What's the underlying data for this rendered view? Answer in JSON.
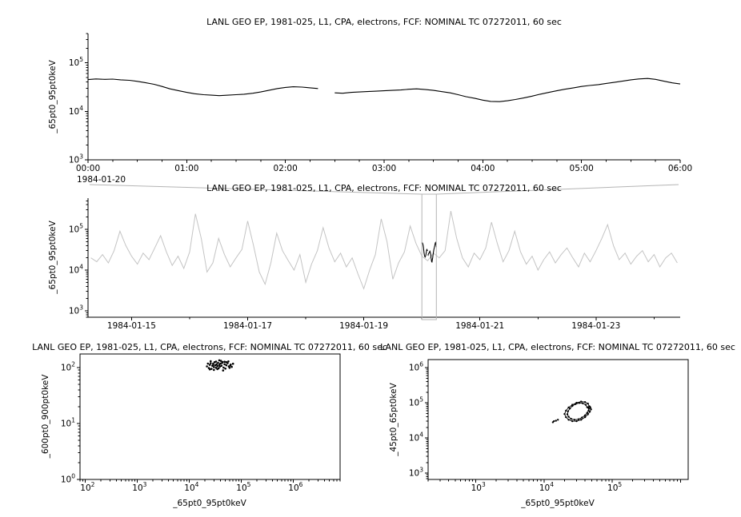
{
  "app": {
    "background_color": "#ffffff",
    "axis_color": "#000000",
    "overview_line_color": "#c4c4c4",
    "selection_box_color": "#b4b4b4"
  },
  "chart_data": [
    {
      "id": "top-timeseries",
      "type": "line",
      "title": "LANL GEO EP, 1981-025, L1, CPA, electrons, FCF: NOMINAL TC 07272011, 60 sec",
      "ylabel": "_65pt0_95pt0keV",
      "x_date_label": "1984-01-20",
      "x_tick_labels": [
        "00:00",
        "01:00",
        "02:00",
        "03:00",
        "04:00",
        "05:00",
        "06:00"
      ],
      "x_tick_hours": [
        0,
        1,
        2,
        3,
        4,
        5,
        6
      ],
      "xlim": [
        0,
        6
      ],
      "ylim": [
        1000,
        400000
      ],
      "y_tick_exponents": [
        3,
        4,
        5
      ],
      "line_color": "#000000",
      "points": [
        [
          0.0,
          45000
        ],
        [
          0.08,
          46500
        ],
        [
          0.17,
          45500
        ],
        [
          0.25,
          46000
        ],
        [
          0.33,
          44500
        ],
        [
          0.42,
          43500
        ],
        [
          0.5,
          41500
        ],
        [
          0.58,
          39000
        ],
        [
          0.67,
          36000
        ],
        [
          0.75,
          32500
        ],
        [
          0.83,
          29000
        ],
        [
          0.92,
          26500
        ],
        [
          1.0,
          24500
        ],
        [
          1.08,
          23000
        ],
        [
          1.17,
          22000
        ],
        [
          1.25,
          21500
        ],
        [
          1.33,
          21000
        ],
        [
          1.42,
          21500
        ],
        [
          1.5,
          22000
        ],
        [
          1.58,
          22500
        ],
        [
          1.67,
          23500
        ],
        [
          1.75,
          25000
        ],
        [
          1.83,
          27000
        ],
        [
          1.92,
          29500
        ],
        [
          2.0,
          31000
        ],
        [
          2.08,
          32000
        ],
        [
          2.17,
          31500
        ],
        [
          2.25,
          30500
        ],
        [
          2.33,
          29500
        ],
        null,
        [
          2.5,
          24000
        ],
        [
          2.58,
          23500
        ],
        [
          2.67,
          24500
        ],
        [
          2.75,
          25000
        ],
        [
          2.83,
          25500
        ],
        [
          2.92,
          26000
        ],
        [
          3.0,
          26500
        ],
        [
          3.08,
          27000
        ],
        [
          3.17,
          27500
        ],
        [
          3.25,
          28500
        ],
        [
          3.33,
          29000
        ],
        [
          3.42,
          28000
        ],
        [
          3.5,
          27000
        ],
        [
          3.58,
          25500
        ],
        [
          3.67,
          24000
        ],
        [
          3.75,
          22000
        ],
        [
          3.83,
          20000
        ],
        [
          3.92,
          18500
        ],
        [
          4.0,
          17000
        ],
        [
          4.08,
          16000
        ],
        [
          4.17,
          15800
        ],
        [
          4.25,
          16500
        ],
        [
          4.33,
          17500
        ],
        [
          4.42,
          19000
        ],
        [
          4.5,
          20500
        ],
        [
          4.58,
          22500
        ],
        [
          4.67,
          24500
        ],
        [
          4.75,
          26500
        ],
        [
          4.83,
          28500
        ],
        [
          4.92,
          30500
        ],
        [
          5.0,
          32500
        ],
        [
          5.08,
          34000
        ],
        [
          5.17,
          35500
        ],
        [
          5.25,
          37500
        ],
        [
          5.33,
          39500
        ],
        [
          5.42,
          42000
        ],
        [
          5.5,
          44500
        ],
        [
          5.58,
          46500
        ],
        [
          5.67,
          47500
        ],
        [
          5.75,
          45500
        ],
        [
          5.83,
          42000
        ],
        [
          5.92,
          38500
        ],
        [
          6.0,
          36500
        ]
      ]
    },
    {
      "id": "overview-timeseries",
      "type": "line",
      "title": "LANL GEO EP, 1981-025, L1, CPA, electrons, FCF: NOMINAL TC 07272011, 60 sec",
      "ylabel": "_65pt0_95pt0keV",
      "x_tick_labels": [
        "1984-01-15",
        "1984-01-17",
        "1984-01-19",
        "1984-01-21",
        "1984-01-23"
      ],
      "x_tick_days": [
        15,
        17,
        19,
        21,
        23
      ],
      "xlim": [
        14.25,
        24.45
      ],
      "ylim": [
        700,
        580000
      ],
      "y_tick_exponents": [
        3,
        4,
        5
      ],
      "line_color": "#c4c4c4",
      "highlight_color": "#000000",
      "highlight_range_days": [
        20.0,
        20.25
      ],
      "series": {
        "start": 14.3,
        "step": 0.1,
        "values": [
          20000,
          16000,
          24000,
          15000,
          30000,
          90000,
          40000,
          22000,
          14000,
          26000,
          18000,
          35000,
          70000,
          28000,
          13000,
          22000,
          11000,
          28000,
          240000,
          60000,
          9000,
          15000,
          60000,
          24000,
          12000,
          20000,
          32000,
          160000,
          40000,
          9000,
          4500,
          15000,
          80000,
          30000,
          17000,
          10000,
          24000,
          5000,
          14000,
          30000,
          110000,
          35000,
          16000,
          26000,
          12000,
          20000,
          8000,
          3500,
          10000,
          24000,
          180000,
          50000,
          6000,
          15000,
          28000,
          120000,
          45000,
          22000,
          17000,
          26000,
          20000,
          30000,
          280000,
          60000,
          20000,
          12000,
          26000,
          18000,
          35000,
          150000,
          45000,
          16000,
          30000,
          90000,
          28000,
          14000,
          22000,
          10000,
          18000,
          28000,
          15000,
          24000,
          35000,
          20000,
          12000,
          26000,
          16000,
          30000,
          60000,
          130000,
          40000,
          18000,
          26000,
          14000,
          22000,
          30000,
          16000,
          24000,
          12000,
          20000,
          26000,
          15000
        ]
      }
    },
    {
      "id": "scatter-left",
      "type": "scatter",
      "title": "LANL GEO EP, 1981-025, L1, CPA, electrons, FCF: NOMINAL TC 07272011, 60 sec",
      "xlabel": "_65pt0_95pt0keV",
      "ylabel": "_600pt0_900pt0keV",
      "xlim": [
        80,
        8000000
      ],
      "ylim": [
        1,
        175
      ],
      "x_tick_exponents": [
        2,
        3,
        4,
        5,
        6
      ],
      "y_tick_exponents": [
        0,
        1,
        2
      ],
      "marker_color": "#000000",
      "points": [
        [
          22000,
          105
        ],
        [
          24000,
          98
        ],
        [
          25000,
          112
        ],
        [
          26000,
          120
        ],
        [
          27000,
          95
        ],
        [
          28000,
          108
        ],
        [
          29000,
          118
        ],
        [
          30000,
          102
        ],
        [
          31000,
          125
        ],
        [
          32000,
          110
        ],
        [
          33000,
          99
        ],
        [
          34000,
          115
        ],
        [
          35000,
          106
        ],
        [
          36000,
          122
        ],
        [
          37000,
          97
        ],
        [
          38000,
          112
        ],
        [
          39000,
          104
        ],
        [
          40000,
          118
        ],
        [
          42000,
          108
        ],
        [
          44000,
          126
        ],
        [
          46000,
          100
        ],
        [
          48000,
          115
        ],
        [
          50000,
          96
        ],
        [
          52000,
          110
        ],
        [
          55000,
          120
        ],
        [
          58000,
          105
        ],
        [
          60000,
          99
        ],
        [
          63000,
          113
        ],
        [
          66000,
          103
        ],
        [
          70000,
          117
        ],
        [
          26000,
          130
        ],
        [
          33000,
          128
        ],
        [
          41000,
          132
        ],
        [
          52000,
          125
        ],
        [
          30000,
          91
        ],
        [
          45000,
          89
        ],
        [
          38000,
          135
        ],
        [
          25000,
          93
        ],
        [
          57000,
          129
        ],
        [
          35000,
          94
        ],
        [
          48000,
          127
        ],
        [
          29000,
          111
        ],
        [
          62000,
          109
        ],
        [
          23000,
          118
        ],
        [
          43000,
          121
        ]
      ]
    },
    {
      "id": "scatter-right",
      "type": "scatter",
      "title": "LANL GEO EP, 1981-025, L1, CPA, electrons, FCF: NOMINAL TC 07272011, 60 sec",
      "xlabel": "_65pt0_95pt0keV",
      "ylabel": "_45pt0_65pt0keV",
      "xlim": [
        200,
        1300000
      ],
      "ylim": [
        660,
        1700000
      ],
      "x_tick_exponents": [
        3,
        4,
        5
      ],
      "y_tick_exponents": [
        3,
        4,
        5,
        6
      ],
      "marker_color": "#000000",
      "segments": [
        [
          [
            46000,
            80000
          ],
          [
            44000,
            95000
          ],
          [
            40000,
            105000
          ],
          [
            35000,
            108000
          ],
          [
            30000,
            100000
          ],
          [
            26000,
            88000
          ],
          [
            23000,
            74000
          ],
          [
            21000,
            60000
          ],
          [
            20000,
            48000
          ],
          [
            21000,
            39000
          ],
          [
            23000,
            33000
          ],
          [
            26000,
            30000
          ],
          [
            30000,
            30000
          ],
          [
            35000,
            33000
          ],
          [
            40000,
            39000
          ],
          [
            44000,
            47000
          ],
          [
            47000,
            56000
          ],
          [
            49000,
            65000
          ],
          [
            48000,
            72000
          ],
          [
            47000,
            78000
          ]
        ],
        [
          [
            43000,
            75000
          ],
          [
            41000,
            88000
          ],
          [
            37000,
            97000
          ],
          [
            33000,
            99000
          ],
          [
            29000,
            92000
          ],
          [
            26000,
            81000
          ],
          [
            24000,
            69000
          ],
          [
            22500,
            57000
          ],
          [
            22000,
            47000
          ],
          [
            23000,
            40000
          ],
          [
            25000,
            35000
          ],
          [
            28000,
            33000
          ],
          [
            32000,
            34000
          ],
          [
            36000,
            38000
          ],
          [
            40000,
            44000
          ],
          [
            43000,
            52000
          ],
          [
            45000,
            60000
          ],
          [
            45500,
            68000
          ],
          [
            44500,
            73000
          ]
        ],
        [
          [
            14000,
            30000
          ],
          [
            15000,
            31000
          ],
          [
            16000,
            33000
          ],
          [
            13500,
            28000
          ]
        ]
      ]
    }
  ]
}
